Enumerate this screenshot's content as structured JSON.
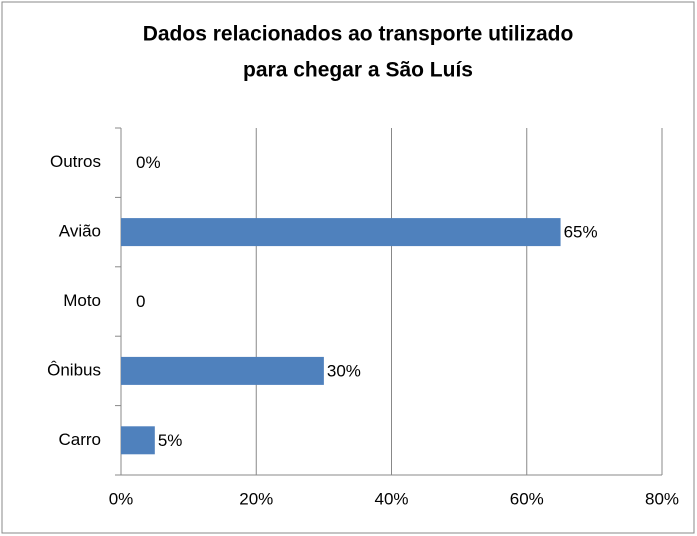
{
  "chart_data": {
    "type": "hbar",
    "title": [
      "Dados  relacionados ao transporte utilizado",
      "para chegar a São Luís"
    ],
    "categories": [
      "Carro",
      "Ônibus",
      "Moto",
      "Avião",
      "Outros"
    ],
    "values": [
      5,
      30,
      0,
      65,
      0
    ],
    "value_labels": [
      "5%",
      "30%",
      "0",
      "65%",
      "0%"
    ],
    "color": "#4f81bd",
    "xlim": [
      0,
      80
    ],
    "xticks": [
      {
        "value": 0,
        "label": "0%"
      },
      {
        "value": 20,
        "label": "20%"
      },
      {
        "value": 40,
        "label": "40%"
      },
      {
        "value": 60,
        "label": "60%"
      },
      {
        "value": 80,
        "label": "80%"
      }
    ],
    "grid": true
  }
}
